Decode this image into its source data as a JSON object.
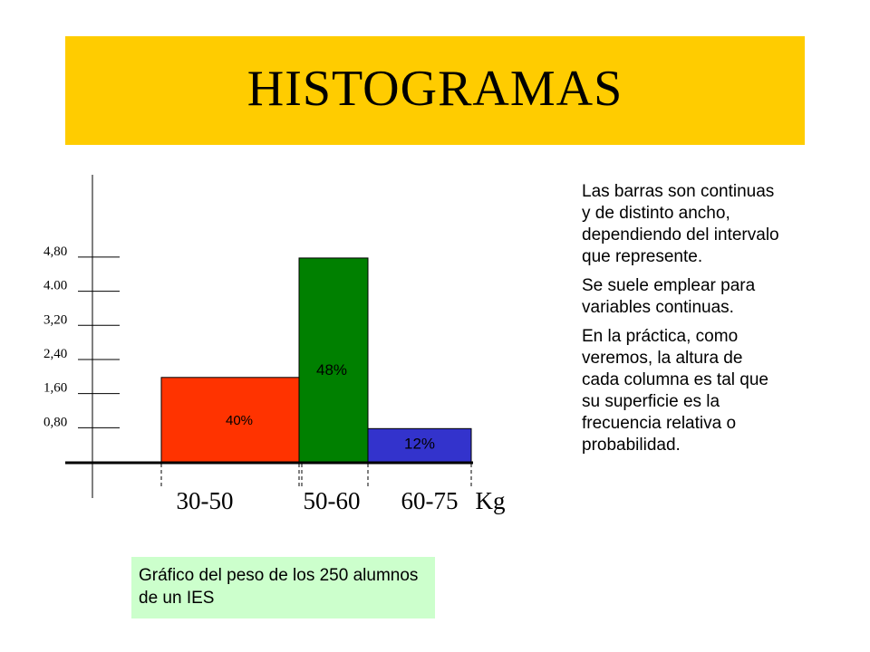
{
  "title": "HISTOGRAMAS",
  "chart_data": {
    "type": "bar",
    "y_ticks": [
      "0,80",
      "1,60",
      "2,40",
      "3,20",
      "4.00",
      "4,80"
    ],
    "categories": [
      "30-50",
      "50-60",
      "60-75"
    ],
    "x_unit": "Kg",
    "bins": [
      {
        "from": 30,
        "to": 50,
        "height": 2.0,
        "label": "40%",
        "color": "#ff3300"
      },
      {
        "from": 50,
        "to": 60,
        "height": 4.8,
        "label": "48%",
        "color": "#008000"
      },
      {
        "from": 60,
        "to": 75,
        "height": 0.8,
        "label": "12%",
        "color": "#3333cc"
      }
    ],
    "ylim": [
      0,
      6.4
    ],
    "grid": false
  },
  "caption": "Gráfico del peso de los 250 alumnos de un IES",
  "description": [
    "Las barras son continuas y de distinto ancho, dependiendo del intervalo que represente.",
    "Se suele emplear para variables continuas.",
    "En la práctica, como veremos,  la altura de cada columna es tal que su superficie es la frecuencia relativa o probabilidad."
  ]
}
